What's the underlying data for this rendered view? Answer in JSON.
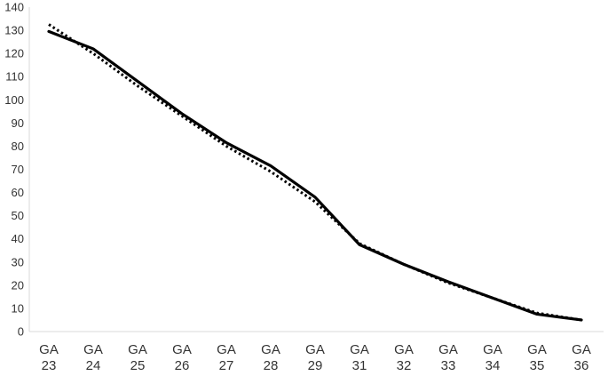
{
  "chart_data": {
    "type": "line",
    "title": "",
    "xlabel": "",
    "ylabel": "",
    "categories": [
      [
        "GA",
        "23"
      ],
      [
        "GA",
        "24"
      ],
      [
        "GA",
        "25"
      ],
      [
        "GA",
        "26"
      ],
      [
        "GA",
        "27"
      ],
      [
        "GA",
        "28"
      ],
      [
        "GA",
        "29"
      ],
      [
        "GA",
        "31"
      ],
      [
        "GA",
        "32"
      ],
      [
        "GA",
        "33"
      ],
      [
        "GA",
        "34"
      ],
      [
        "GA",
        "35"
      ],
      [
        "GA",
        "36"
      ]
    ],
    "ylim": [
      0,
      140
    ],
    "yticks": [
      0,
      10,
      20,
      30,
      40,
      50,
      60,
      70,
      80,
      90,
      100,
      110,
      120,
      130,
      140
    ],
    "grid": false,
    "legend": "none",
    "series": [
      {
        "style": "solid",
        "color": "#000000",
        "values": [
          129.5,
          122,
          108,
          94,
          81.5,
          71.5,
          58,
          37.5,
          29,
          21.5,
          14.5,
          7.5,
          5
        ]
      },
      {
        "style": "dotted",
        "color": "#000000",
        "values": [
          132.5,
          120,
          106,
          93,
          80,
          69,
          56,
          38,
          29,
          21,
          14.5,
          8,
          5
        ]
      }
    ]
  }
}
